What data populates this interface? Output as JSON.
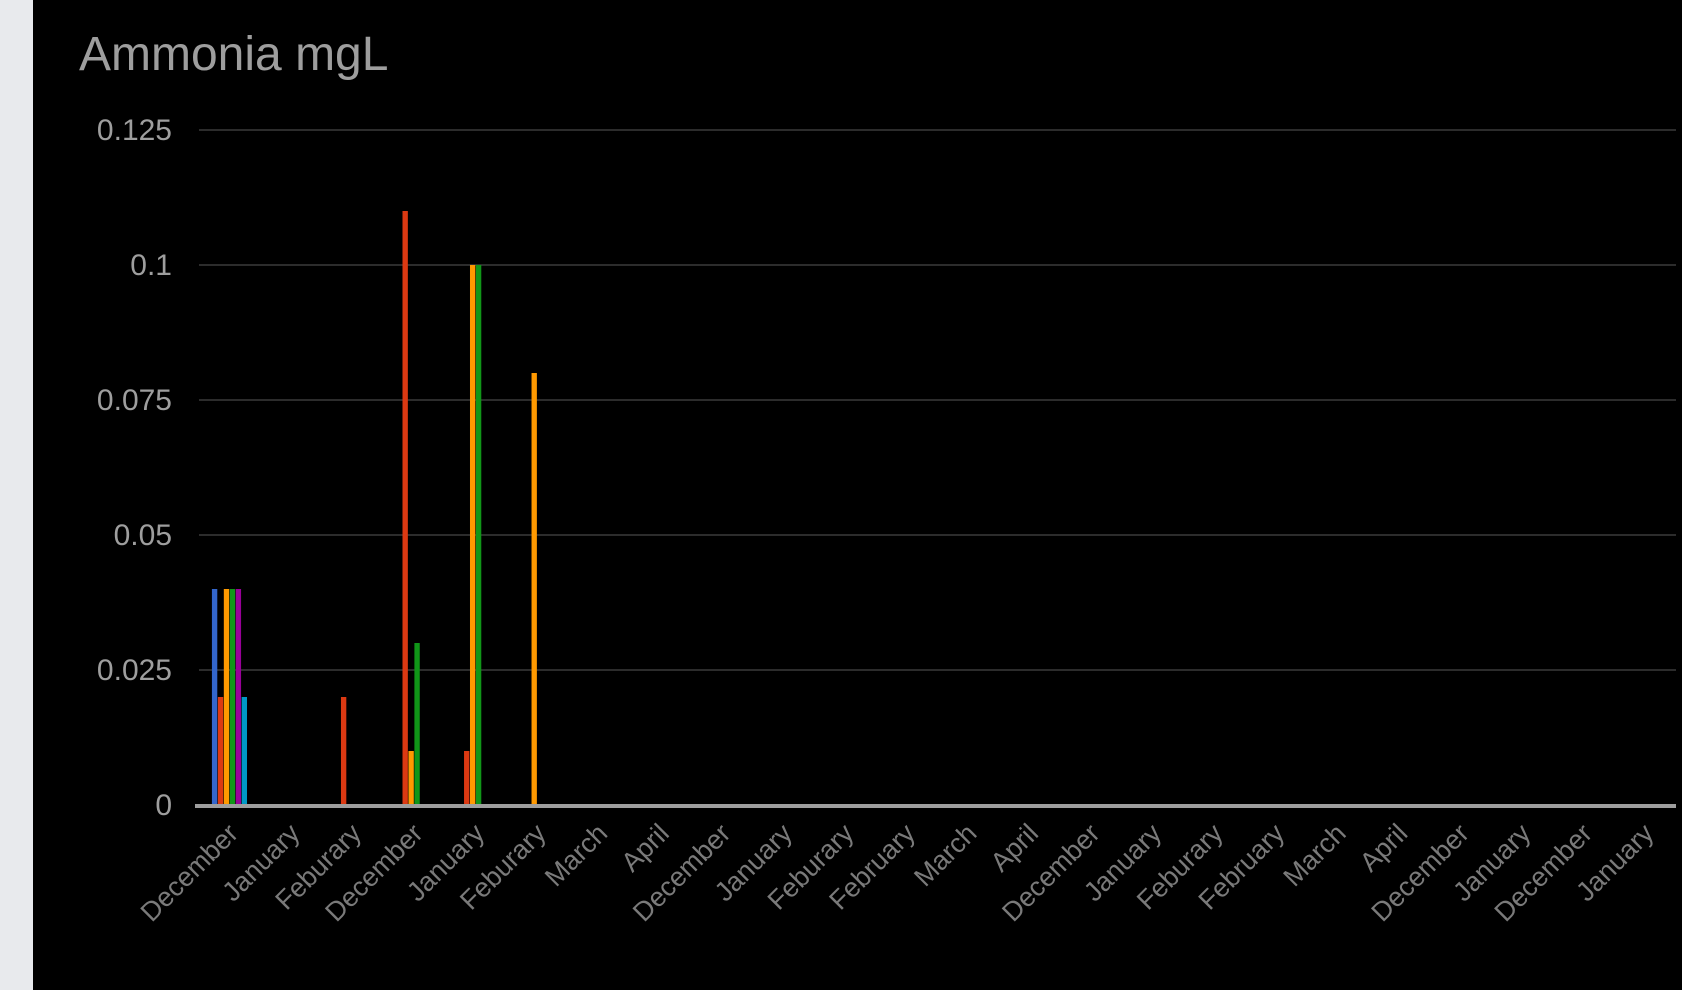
{
  "chart_data": {
    "type": "bar",
    "title": "Ammonia mgL",
    "xlabel": "",
    "ylabel": "",
    "ylim": [
      0,
      0.125
    ],
    "y_ticks": [
      "0",
      "0.025",
      "0.05",
      "0.075",
      "0.1",
      "0.125"
    ],
    "y_tick_values": [
      0,
      0.025,
      0.05,
      0.075,
      0.1,
      0.125
    ],
    "grid": true,
    "legend": "none",
    "categories": [
      "December",
      "January",
      "Feburary",
      "December",
      "January",
      "Feburary",
      "March",
      "April",
      "December",
      "January",
      "Feburary",
      "February",
      "March",
      "April",
      "December",
      "January",
      "Feburary",
      "February",
      "March",
      "April",
      "December",
      "January",
      "December",
      "January"
    ],
    "series": [
      {
        "color": "#3366cc",
        "values": [
          0.04,
          0,
          0,
          0,
          0,
          0,
          0,
          0,
          0,
          0,
          0,
          0,
          0,
          0,
          0,
          0,
          0,
          0,
          0,
          0,
          0,
          0,
          0,
          0
        ]
      },
      {
        "color": "#dc3912",
        "values": [
          0.02,
          0,
          0.02,
          0.11,
          0.01,
          0,
          0,
          0,
          0,
          0,
          0,
          0,
          0,
          0,
          0,
          0,
          0,
          0,
          0,
          0,
          0,
          0,
          0,
          0
        ]
      },
      {
        "color": "#ff9900",
        "values": [
          0.04,
          0,
          0,
          0.01,
          0.1,
          0.08,
          0,
          0,
          0,
          0,
          0,
          0,
          0,
          0,
          0,
          0,
          0,
          0,
          0,
          0,
          0,
          0,
          0,
          0
        ]
      },
      {
        "color": "#109618",
        "values": [
          0.04,
          0,
          0,
          0.03,
          0.1,
          0,
          0,
          0,
          0,
          0,
          0,
          0,
          0,
          0,
          0,
          0,
          0,
          0,
          0,
          0,
          0,
          0,
          0,
          0
        ]
      },
      {
        "color": "#990099",
        "values": [
          0.04,
          0,
          0,
          0,
          0,
          0,
          0,
          0,
          0,
          0,
          0,
          0,
          0,
          0,
          0,
          0,
          0,
          0,
          0,
          0,
          0,
          0,
          0,
          0
        ]
      },
      {
        "color": "#0099c6",
        "values": [
          0.02,
          0,
          0,
          0,
          0,
          0,
          0,
          0,
          0,
          0,
          0,
          0,
          0,
          0,
          0,
          0,
          0,
          0,
          0,
          0,
          0,
          0,
          0,
          0
        ]
      }
    ]
  }
}
